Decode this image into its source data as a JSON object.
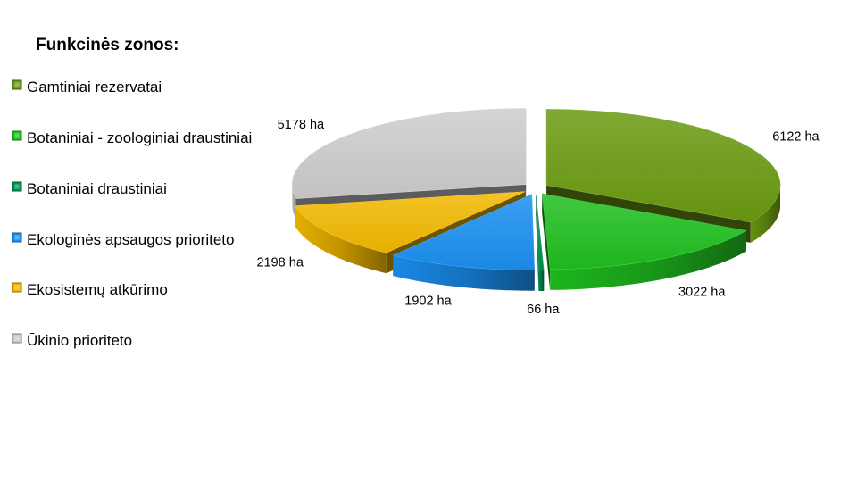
{
  "chart_data": {
    "type": "pie",
    "title": "Funkcinės zonos:",
    "legend_position": "left",
    "unit": "ha",
    "categories": [
      "Gamtiniai rezervatai",
      "Botaniniai - zoologiniai draustiniai",
      "Botaniniai draustiniai",
      "Ekologinės apsaugos prioriteto",
      "Ekosistemų atkūrimo",
      "Ūkinio prioriteto"
    ],
    "values": [
      6122,
      3022,
      66,
      1902,
      2198,
      5178
    ],
    "labels": [
      "6122 ha",
      "3022 ha",
      "66 ha",
      "1902 ha",
      "2198 ha",
      "5178 ha"
    ],
    "colors": [
      "#6a9a10",
      "#1fbf1f",
      "#00914f",
      "#1a8ff0",
      "#f2b800",
      "#cccccc"
    ],
    "legend_labels": [
      "Gamtiniai rezervatai",
      "Botaniniai - zoologiniai draustiniai",
      "Botaniniai draustiniai",
      " Ekologinės apsaugos prioriteto",
      " Ekosistemų atkūrimo",
      "Ūkinio prioriteto"
    ]
  }
}
